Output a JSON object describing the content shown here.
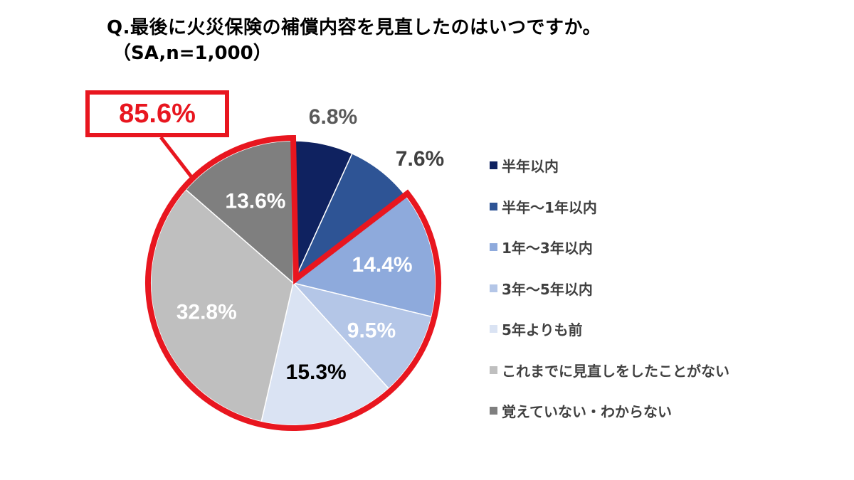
{
  "title": "Q.最後に火災保険の補償内容を見直したのはいつですか。",
  "subtitle": "（SA,n=1,000）",
  "callout": "85.6%",
  "chart_data": {
    "type": "pie",
    "categories": [
      "半年以内",
      "半年〜1年以内",
      "1年〜3年以内",
      "3年〜5年以内",
      "5年よりも前",
      "これまでに見直しをしたことがない",
      "覚えていない・わからない"
    ],
    "values": [
      6.8,
      7.6,
      14.4,
      9.5,
      15.3,
      32.8,
      13.6
    ],
    "data_labels": [
      "6.8%",
      "7.6%",
      "14.4%",
      "9.5%",
      "15.3%",
      "32.8%",
      "13.6%"
    ],
    "colors": [
      "#0f2260",
      "#2e5495",
      "#8eaadc",
      "#b4c6e7",
      "#dae3f3",
      "#bfbfbf",
      "#7f7f7f"
    ],
    "label_colors": [
      "#595959",
      "#404040",
      "#ffffff",
      "#ffffff",
      "#000000",
      "#ffffff",
      "#ffffff"
    ],
    "highlight_color": "#e8161f",
    "legend_position": "right"
  }
}
